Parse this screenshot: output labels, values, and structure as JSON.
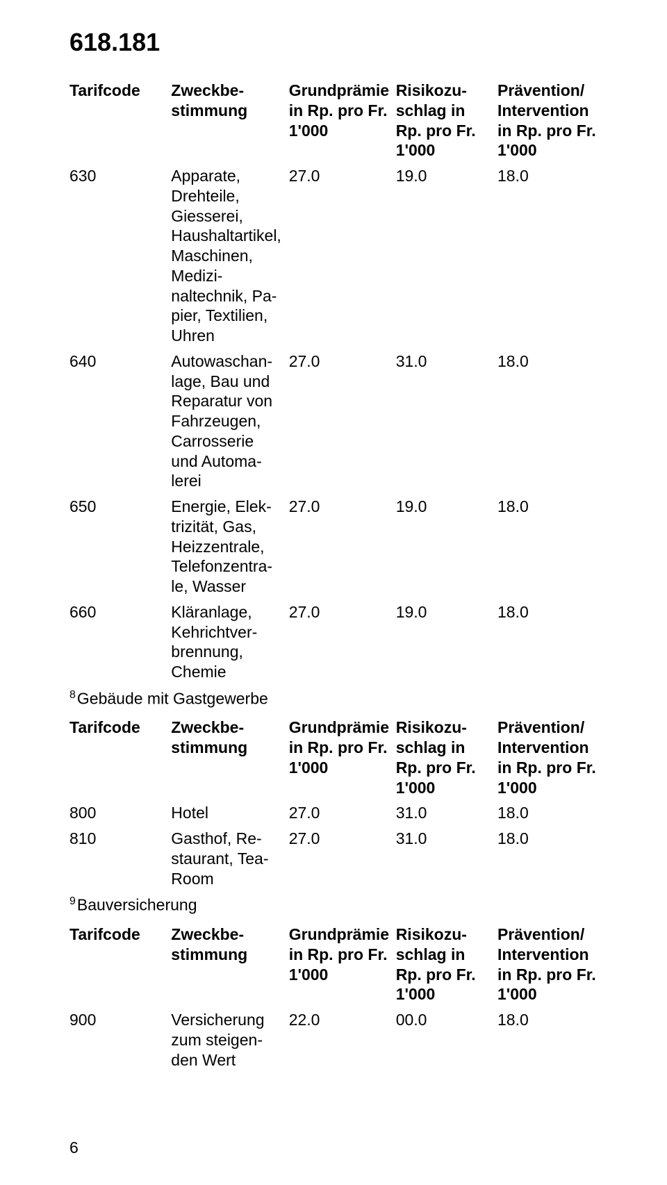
{
  "doc_number": "618.181",
  "page_number": "6",
  "headers": {
    "tarifcode": "Tarifcode",
    "zweck": "Zweckbe­stimmung",
    "grund": "Grundprämie in Rp. pro Fr. 1'000",
    "risiko": "Risikozu­schlag in Rp. pro Fr. 1'000",
    "praev": "Prävention/ Intervention in Rp. pro Fr. 1'000"
  },
  "table_a": {
    "rows": [
      {
        "code": "630",
        "desc": "Apparate, Drehteile, Giesserei, Haushaltarti­kel, Maschi­nen, Medizi­naltechnik, Pa­pier, Textilien, Uhren",
        "v1": "27.0",
        "v2": "19.0",
        "v3": "18.0"
      },
      {
        "code": "640",
        "desc": "Autowaschan­lage, Bau und Reparatur von Fahrzeugen, Carrosserie und Automa­lerei",
        "v1": "27.0",
        "v2": "31.0",
        "v3": "18.0"
      },
      {
        "code": "650",
        "desc": "Energie, Elek­trizität, Gas, Heizzentrale, Telefonzentra­le, Wasser",
        "v1": "27.0",
        "v2": "19.0",
        "v3": "18.0"
      },
      {
        "code": "660",
        "desc": "Kläranlage, Kehrichtver­brennung, Chemie",
        "v1": "27.0",
        "v2": "19.0",
        "v3": "18.0"
      }
    ]
  },
  "section_b": {
    "sup": "8",
    "title": "Gebäude mit Gastgewerbe"
  },
  "table_b": {
    "rows": [
      {
        "code": "800",
        "desc": "Hotel",
        "v1": "27.0",
        "v2": "31.0",
        "v3": "18.0"
      },
      {
        "code": "810",
        "desc": "Gasthof, Re­staurant, Tea-Room",
        "v1": "27.0",
        "v2": "31.0",
        "v3": "18.0"
      }
    ]
  },
  "section_c": {
    "sup": "9",
    "title": "Bauversicherung"
  },
  "table_c": {
    "rows": [
      {
        "code": "900",
        "desc": "Versicherung zum steigen­den Wert",
        "v1": "22.0",
        "v2": "00.0",
        "v3": "18.0"
      }
    ]
  }
}
